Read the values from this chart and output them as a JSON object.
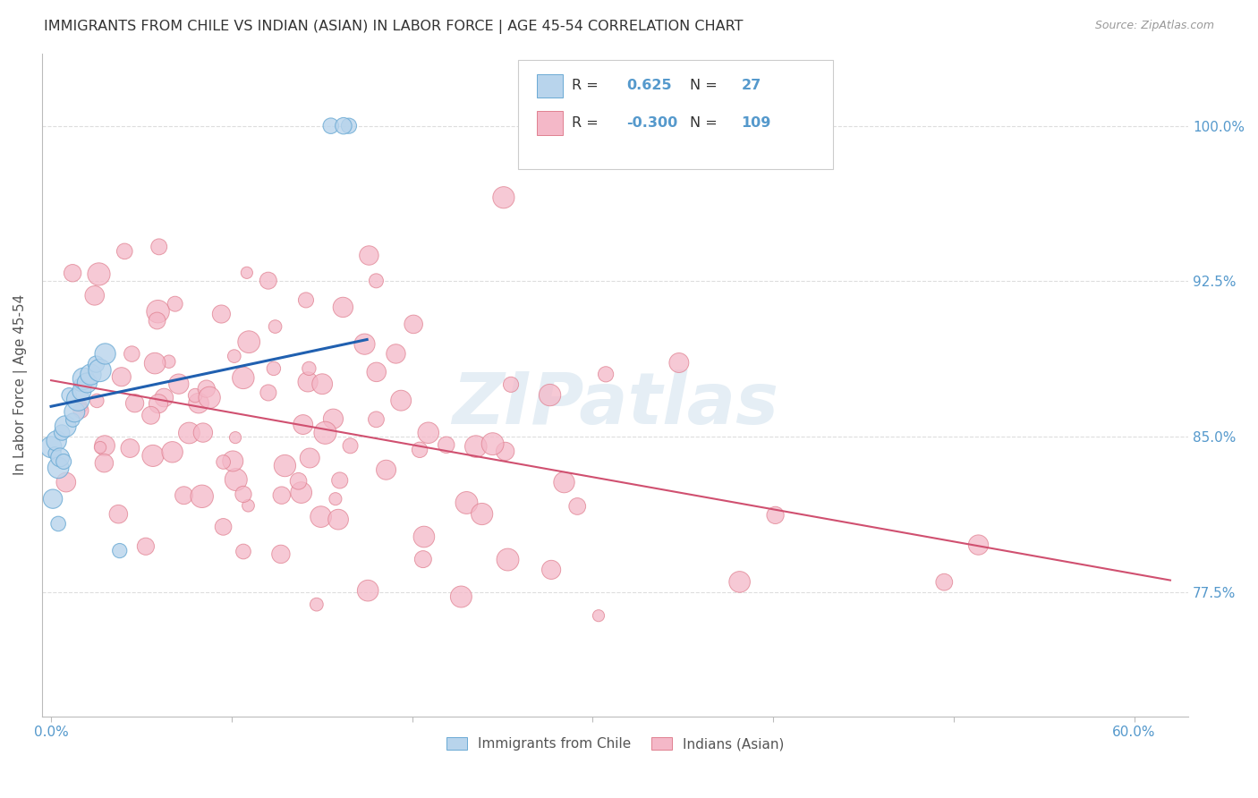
{
  "title": "IMMIGRANTS FROM CHILE VS INDIAN (ASIAN) IN LABOR FORCE | AGE 45-54 CORRELATION CHART",
  "source": "Source: ZipAtlas.com",
  "ylabel": "In Labor Force | Age 45-54",
  "ymin": 0.715,
  "ymax": 1.035,
  "xmin": -0.005,
  "xmax": 0.63,
  "chile_R": 0.625,
  "chile_N": 27,
  "indian_R": -0.3,
  "indian_N": 109,
  "chile_color": "#b8d4ec",
  "chile_edge_color": "#6aaad4",
  "chile_line_color": "#2060b0",
  "indian_color": "#f4b8c8",
  "indian_edge_color": "#e08090",
  "indian_line_color": "#d05070",
  "background_color": "#ffffff",
  "grid_color": "#dddddd",
  "title_color": "#333333",
  "axis_label_color": "#5599cc",
  "watermark": "ZIPatlas",
  "ytick_pos": [
    0.775,
    0.85,
    0.925,
    1.0
  ],
  "ytick_labels": [
    "77.5%",
    "85.0%",
    "92.5%",
    "100.0%"
  ]
}
